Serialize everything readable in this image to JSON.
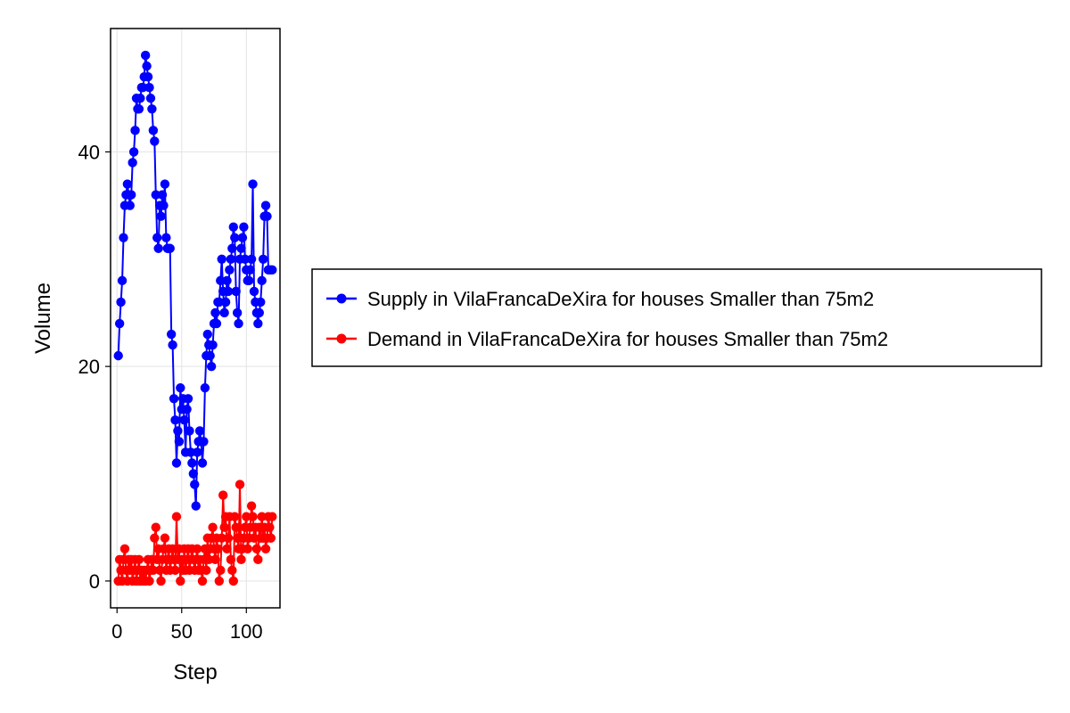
{
  "chart_data": {
    "type": "line",
    "xlabel": "Step",
    "ylabel": "Volume",
    "xlim": [
      -5,
      126
    ],
    "ylim": [
      -2.5,
      51.5
    ],
    "xticks": [
      0,
      50,
      100
    ],
    "yticks": [
      0,
      20,
      40
    ],
    "xtick_labels": [
      "0",
      "50",
      "100"
    ],
    "ytick_labels": [
      "0",
      "20",
      "40"
    ],
    "grid": true,
    "legend_position": "right",
    "series": [
      {
        "name": "Supply in VilaFrancaDeXira for houses Smaller than 75m2",
        "color": "#0000ff",
        "x": [
          1,
          2,
          3,
          4,
          5,
          6,
          7,
          8,
          9,
          10,
          11,
          12,
          13,
          14,
          15,
          16,
          17,
          18,
          19,
          20,
          21,
          22,
          23,
          24,
          25,
          26,
          27,
          28,
          29,
          30,
          31,
          32,
          33,
          34,
          35,
          36,
          37,
          38,
          39,
          40,
          41,
          42,
          43,
          44,
          45,
          46,
          47,
          48,
          49,
          50,
          51,
          52,
          53,
          54,
          55,
          56,
          57,
          58,
          59,
          60,
          61,
          62,
          63,
          64,
          65,
          66,
          67,
          68,
          69,
          70,
          71,
          72,
          73,
          74,
          75,
          76,
          77,
          78,
          79,
          80,
          81,
          82,
          83,
          84,
          85,
          86,
          87,
          88,
          89,
          90,
          91,
          92,
          93,
          94,
          95,
          96,
          97,
          98,
          99,
          100,
          101,
          102,
          103,
          104,
          105,
          106,
          107,
          108,
          109,
          110,
          111,
          112,
          113,
          114,
          115,
          116,
          117,
          118,
          119,
          120
        ],
        "values": [
          21,
          24,
          26,
          28,
          32,
          35,
          36,
          37,
          36,
          35,
          36,
          39,
          40,
          42,
          45,
          44,
          44,
          45,
          46,
          46,
          47,
          49,
          48,
          47,
          46,
          45,
          44,
          42,
          41,
          36,
          32,
          31,
          35,
          34,
          36,
          35,
          37,
          32,
          31,
          31,
          31,
          23,
          22,
          17,
          15,
          11,
          14,
          13,
          18,
          16,
          17,
          15,
          12,
          16,
          17,
          14,
          12,
          11,
          10,
          9,
          7,
          12,
          13,
          14,
          13,
          11,
          13,
          18,
          21,
          23,
          22,
          21,
          20,
          22,
          24,
          25,
          24,
          26,
          26,
          28,
          30,
          27,
          25,
          26,
          28,
          27,
          29,
          30,
          31,
          33,
          32,
          27,
          25,
          24,
          30,
          31,
          32,
          33,
          30,
          29,
          28,
          28,
          29,
          30,
          37,
          27,
          26,
          25,
          24,
          25,
          26,
          28,
          30,
          34,
          35,
          34,
          29,
          29,
          29,
          29
        ],
        "note": ""
      },
      {
        "name": "Demand in VilaFrancaDeXira for houses Smaller than 75m2",
        "color": "#ff0000",
        "x": [
          1,
          2,
          3,
          4,
          5,
          6,
          7,
          8,
          9,
          10,
          11,
          12,
          13,
          14,
          15,
          16,
          17,
          18,
          19,
          20,
          21,
          22,
          23,
          24,
          25,
          26,
          27,
          28,
          29,
          30,
          31,
          32,
          33,
          34,
          35,
          36,
          37,
          38,
          39,
          40,
          41,
          42,
          43,
          44,
          45,
          46,
          47,
          48,
          49,
          50,
          51,
          52,
          53,
          54,
          55,
          56,
          57,
          58,
          59,
          60,
          61,
          62,
          63,
          64,
          65,
          66,
          67,
          68,
          69,
          70,
          71,
          72,
          73,
          74,
          75,
          76,
          77,
          78,
          79,
          80,
          81,
          82,
          83,
          84,
          85,
          86,
          87,
          88,
          89,
          90,
          91,
          92,
          93,
          94,
          95,
          96,
          97,
          98,
          99,
          100,
          101,
          102,
          103,
          104,
          105,
          106,
          107,
          108,
          109,
          110,
          111,
          112,
          113,
          114,
          115,
          116,
          117,
          118,
          119,
          120
        ],
        "values": [
          0,
          2,
          1,
          0,
          2,
          3,
          1,
          0,
          2,
          1,
          2,
          0,
          1,
          2,
          0,
          1,
          2,
          0,
          1,
          0,
          1,
          0,
          1,
          2,
          0,
          1,
          2,
          1,
          4,
          5,
          2,
          3,
          1,
          0,
          2,
          3,
          4,
          1,
          2,
          3,
          1,
          2,
          3,
          2,
          1,
          6,
          2,
          3,
          0,
          2,
          1,
          3,
          1,
          2,
          3,
          1,
          2,
          3,
          2,
          1,
          2,
          3,
          1,
          2,
          1,
          0,
          2,
          3,
          1,
          4,
          2,
          3,
          4,
          5,
          3,
          2,
          4,
          3,
          0,
          1,
          4,
          8,
          5,
          6,
          3,
          4,
          6,
          2,
          1,
          0,
          6,
          5,
          4,
          3,
          9,
          2,
          3,
          4,
          5,
          6,
          3,
          4,
          5,
          7,
          6,
          4,
          5,
          3,
          2,
          5,
          4,
          6,
          4,
          5,
          3,
          4,
          6,
          5,
          4,
          6
        ],
        "note": ""
      }
    ]
  }
}
